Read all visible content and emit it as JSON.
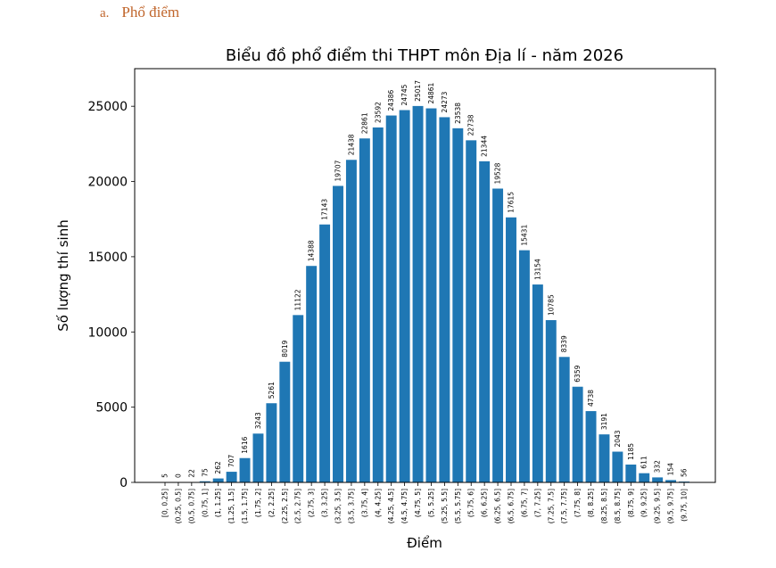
{
  "section": {
    "number": "a.",
    "title": "Phổ điểm"
  },
  "chart_data": {
    "type": "bar",
    "title": "Biểu đồ phổ điểm thi THPT môn Địa lí - năm 2026",
    "xlabel": "Điểm",
    "ylabel": "Số lượng thí sinh",
    "ylim": [
      0,
      27500
    ],
    "yticks": [
      0,
      5000,
      10000,
      15000,
      20000,
      25000
    ],
    "grid": false,
    "categories": [
      "[0, 0.25]",
      "(0.25, 0.5]",
      "(0.5, 0.75]",
      "(0.75, 1]",
      "(1, 1.25]",
      "(1.25, 1.5]",
      "(1.5, 1.75]",
      "(1.75, 2]",
      "(2, 2.25]",
      "(2.25, 2.5]",
      "(2.5, 2.75]",
      "(2.75, 3]",
      "(3, 3.25]",
      "(3.25, 3.5]",
      "(3.5, 3.75]",
      "(3.75, 4]",
      "(4, 4.25]",
      "(4.25, 4.5]",
      "(4.5, 4.75]",
      "(4.75, 5]",
      "(5, 5.25]",
      "(5.25, 5.5]",
      "(5.5, 5.75]",
      "(5.75, 6]",
      "(6, 6.25]",
      "(6.25, 6.5]",
      "(6.5, 6.75]",
      "(6.75, 7]",
      "(7, 7.25]",
      "(7.25, 7.5]",
      "(7.5, 7.75]",
      "(7.75, 8]",
      "(8, 8.25]",
      "(8.25, 8.5]",
      "(8.5, 8.75]",
      "(8.75, 9]",
      "(9, 9.25]",
      "(9.25, 9.5]",
      "(9.5, 9.75]",
      "(9.75, 10]"
    ],
    "values": [
      5,
      0,
      22,
      75,
      262,
      707,
      1616,
      3243,
      5261,
      8019,
      11122,
      14388,
      17143,
      19707,
      21438,
      22861,
      23592,
      24386,
      24745,
      25017,
      24861,
      24273,
      23538,
      22738,
      21344,
      19528,
      17615,
      15431,
      13154,
      10785,
      8339,
      6359,
      4738,
      3191,
      2043,
      1185,
      611,
      332,
      154,
      56
    ],
    "bar_color": "#1f77b4"
  }
}
